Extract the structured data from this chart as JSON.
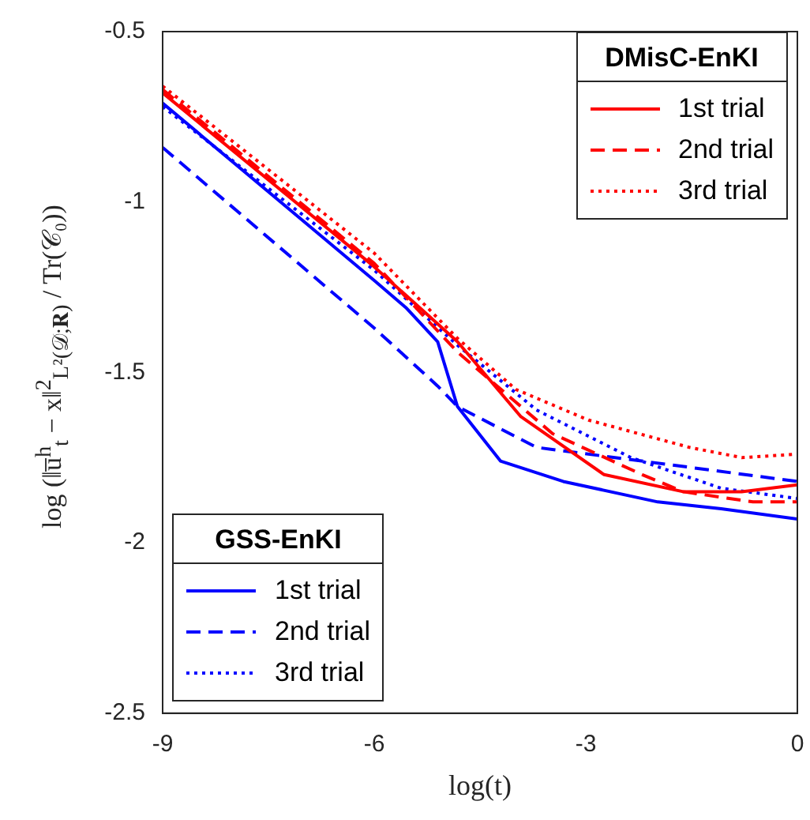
{
  "chart_data": {
    "type": "line",
    "xlabel": "log(t)",
    "ylabel": "log (‖u̅$^{h}$$_{t}$ − x‖$^{2}$$_{L²(𝒟;𝐑)}$ / Tr(𝒞₀))",
    "xlim": [
      -9,
      0
    ],
    "xticks": [
      -9,
      -6,
      -3,
      0
    ],
    "ylim": [
      -2.5,
      -0.5
    ],
    "yticks": [
      -2.5,
      -2,
      -1.5,
      -1,
      -0.5
    ],
    "grid": false,
    "legend": [
      "top right",
      "bottom left"
    ],
    "legend_title": [
      "DMisC-EnKI",
      "GSS-EnKI"
    ],
    "series": [
      {
        "name": "1st trial",
        "color": "#ff0000",
        "line_style": "solid",
        "x": [
          -9,
          -6,
          -4.82,
          -3.92,
          -2.74,
          -1.62,
          -0.79,
          0
        ],
        "values": [
          -0.68,
          -1.19,
          -1.41,
          -1.63,
          -1.8,
          -1.85,
          -1.85,
          -1.83
        ]
      },
      {
        "name": "2nd trial",
        "color": "#ff0000",
        "line_style": "dashed",
        "x": [
          -9,
          -6,
          -4.82,
          -3.47,
          -2.2,
          -1.62,
          -0.63,
          0
        ],
        "values": [
          -0.67,
          -1.18,
          -1.44,
          -1.68,
          -1.8,
          -1.85,
          -1.88,
          -1.88
        ]
      },
      {
        "name": "3rd trial",
        "color": "#ff0000",
        "line_style": "dotted",
        "x": [
          -9,
          -6,
          -4.82,
          -3.99,
          -2.96,
          -1.53,
          -0.79,
          0
        ],
        "values": [
          -0.66,
          -1.15,
          -1.4,
          -1.55,
          -1.64,
          -1.72,
          -1.75,
          -1.74
        ]
      },
      {
        "name": "1st trial",
        "color": "#0000ff",
        "line_style": "solid",
        "x": [
          -9,
          -6,
          -5.55,
          -5.1,
          -4.82,
          -4.21,
          -3.32,
          -1.98,
          -1.08,
          0
        ],
        "values": [
          -0.71,
          -1.23,
          -1.31,
          -1.41,
          -1.6,
          -1.76,
          -1.82,
          -1.88,
          -1.9,
          -1.93
        ]
      },
      {
        "name": "2nd trial",
        "color": "#0000ff",
        "line_style": "dashed",
        "x": [
          -9,
          -6,
          -5.1,
          -4.82,
          -3.7,
          -1.84,
          0
        ],
        "values": [
          -0.84,
          -1.37,
          -1.54,
          -1.6,
          -1.72,
          -1.77,
          -1.82
        ]
      },
      {
        "name": "3rd trial",
        "color": "#0000ff",
        "line_style": "dotted",
        "x": [
          -9,
          -6,
          -4.82,
          -3.7,
          -2.36,
          -1.08,
          0
        ],
        "values": [
          -0.72,
          -1.2,
          -1.42,
          -1.61,
          -1.75,
          -1.84,
          -1.87
        ]
      }
    ]
  }
}
